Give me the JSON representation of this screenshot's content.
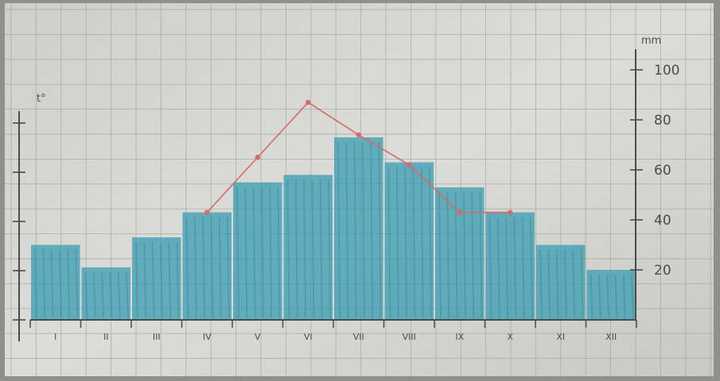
{
  "chart_data": {
    "type": "bar",
    "categories": [
      "I",
      "II",
      "III",
      "IV",
      "V",
      "VI",
      "VII",
      "VIII",
      "IX",
      "X",
      "XI",
      "XII"
    ],
    "series": [
      {
        "type": "bar",
        "values": [
          30,
          21,
          33,
          43,
          55,
          58,
          73,
          63,
          53,
          43,
          30,
          20
        ]
      },
      {
        "type": "line",
        "values": [
          null,
          null,
          null,
          43,
          65,
          87,
          74,
          62,
          43,
          43,
          null,
          null
        ]
      }
    ],
    "y_left": {
      "label": "t°",
      "ticks": [
        "",
        "",
        "",
        "",
        ""
      ]
    },
    "y_right": {
      "label": "mm",
      "ticks": [
        "20",
        "40",
        "60",
        "80",
        "100"
      ],
      "range": [
        0,
        100
      ]
    },
    "grid": true,
    "colors": {
      "bar": "#3f9fb4",
      "line": "#d56a6a",
      "paper": "#d9d9d4",
      "grid": "#9aa0a0",
      "ink": "#4b4b4b"
    }
  }
}
